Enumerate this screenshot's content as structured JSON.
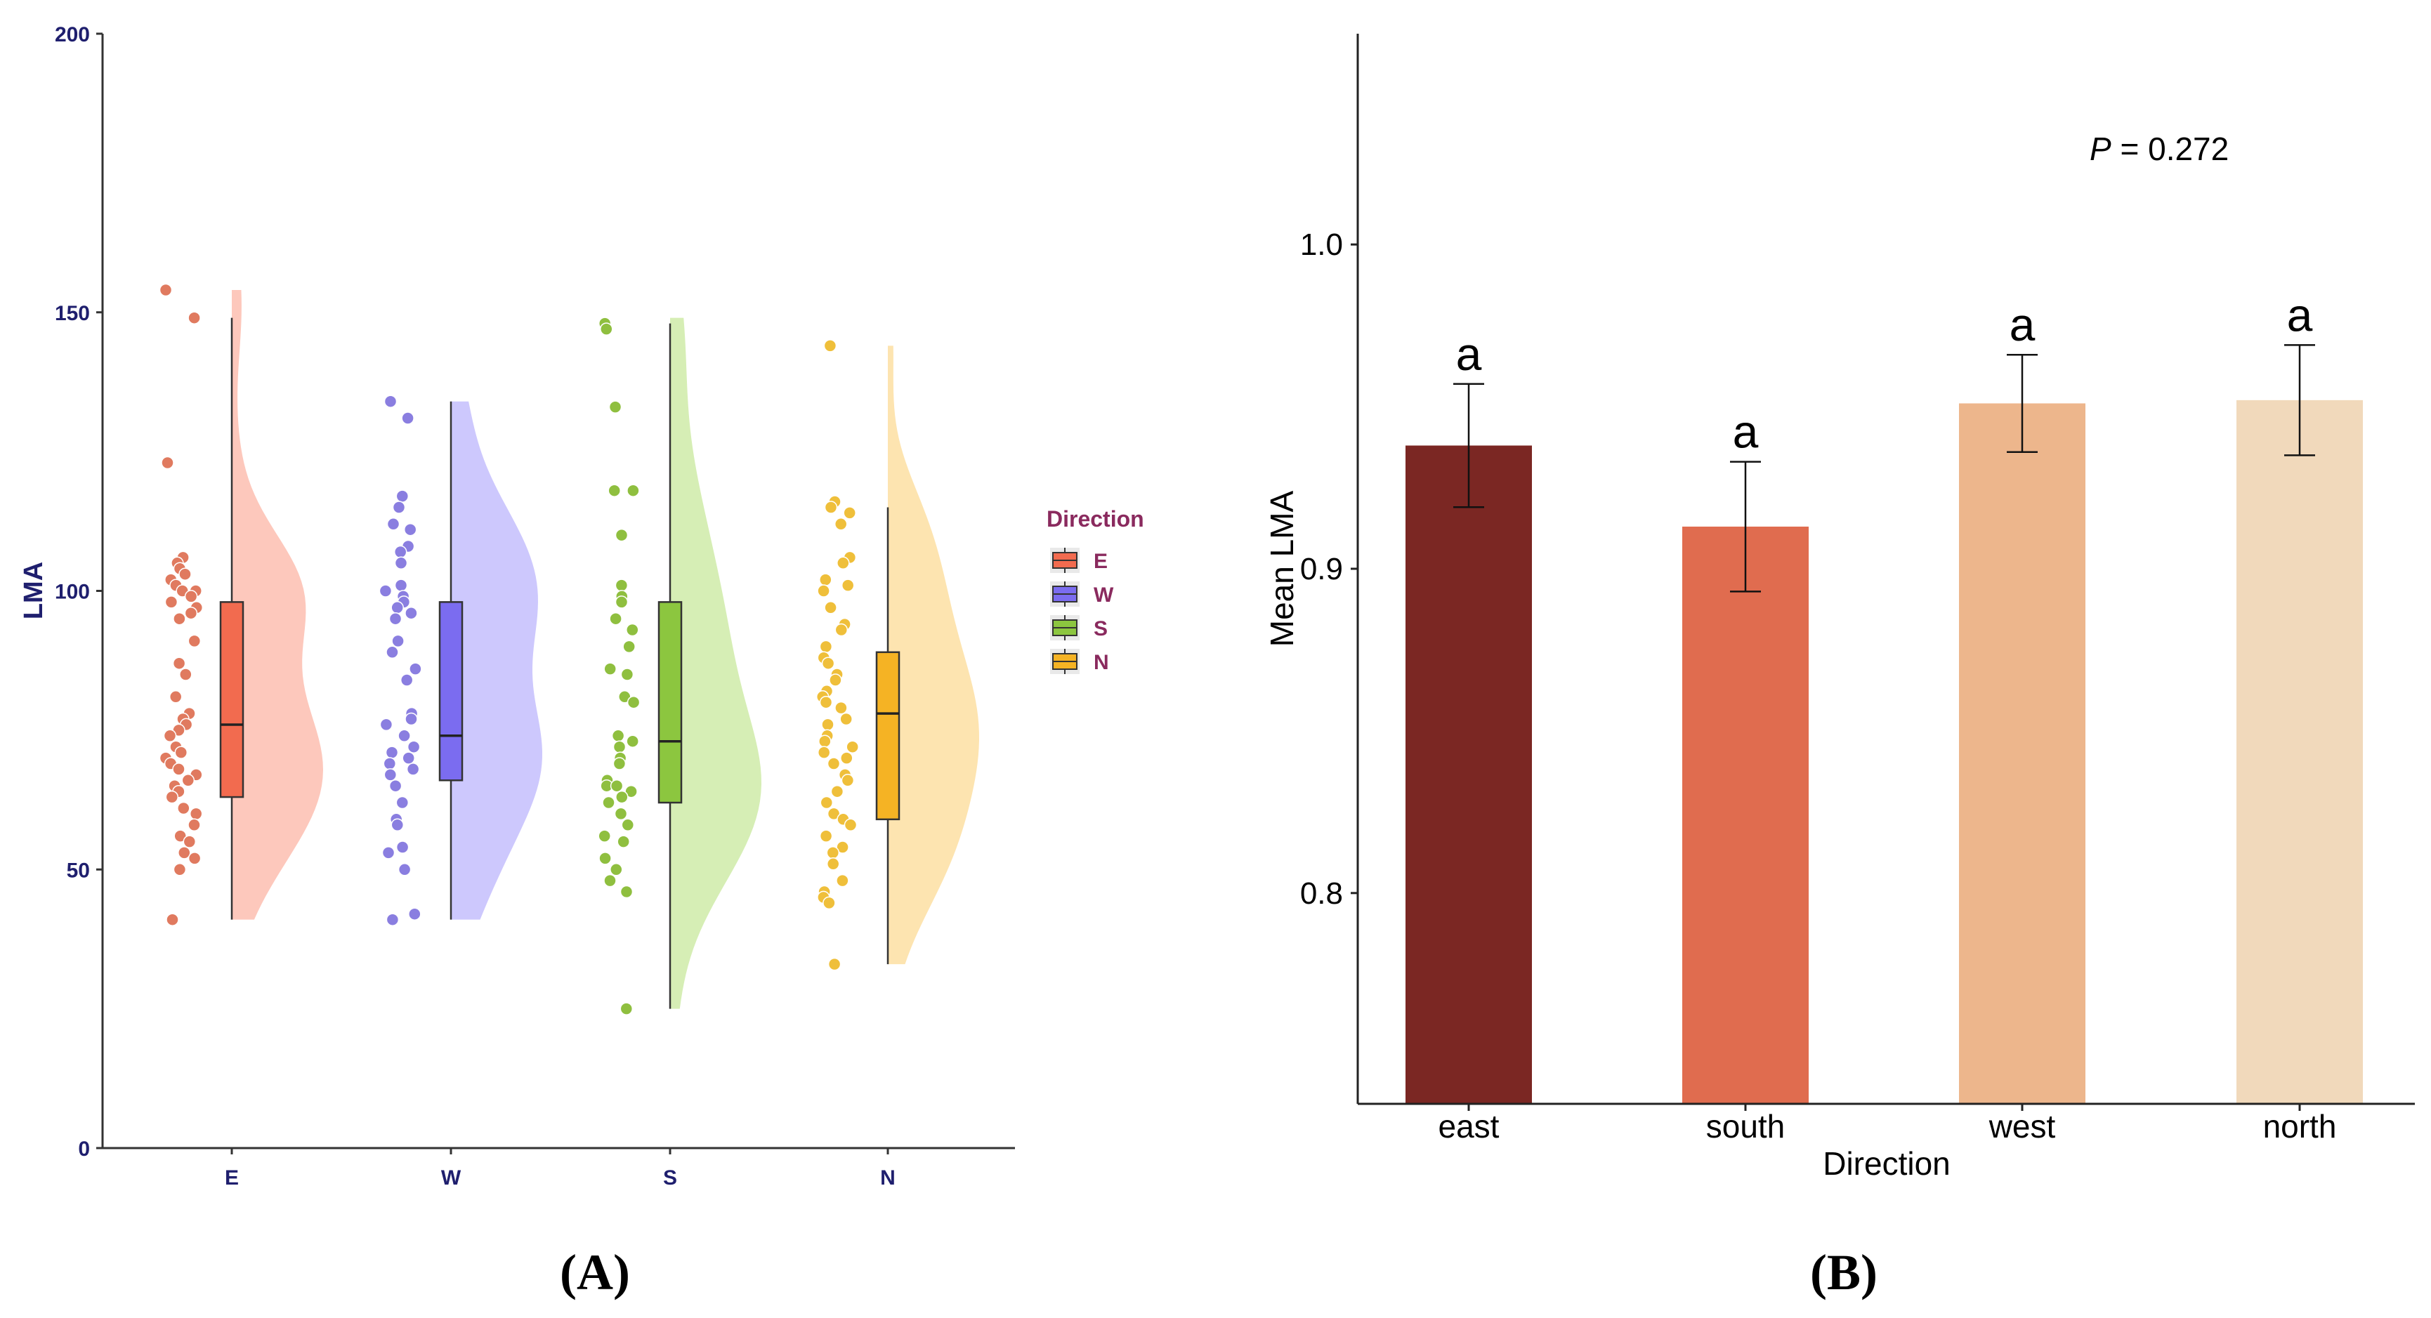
{
  "chart_data": [
    {
      "panel": "(A)",
      "panel_label": "(A)",
      "type": "scatter",
      "subtype": "raincloud (jittered points + boxplot + half-violin density)",
      "ylabel": "LMA",
      "xlabel": "",
      "ylim": [
        0,
        200
      ],
      "yticks": [
        "0",
        "50",
        "100",
        "150",
        "200"
      ],
      "categories": [
        "E",
        "W",
        "S",
        "N"
      ],
      "legend": {
        "title": "Direction",
        "position": "right",
        "entries": [
          {
            "label": "E",
            "color": "#f26b4f"
          },
          {
            "label": "W",
            "color": "#7b6cf0"
          },
          {
            "label": "S",
            "color": "#8cc63f"
          },
          {
            "label": "N",
            "color": "#f5b324"
          }
        ]
      },
      "series": [
        {
          "name": "E",
          "point_color": "#e07a5f",
          "box_color": "#f26b4f",
          "violin_color": "#fdc8bc",
          "box": {
            "min": 41,
            "q1": 63,
            "median": 76,
            "q3": 98,
            "max": 149
          },
          "violin_max": 154,
          "points": [
            154,
            149,
            123,
            106,
            105,
            104,
            103,
            102,
            101,
            100,
            100,
            99,
            98,
            97,
            96,
            95,
            91,
            87,
            85,
            81,
            78,
            77,
            76,
            75,
            74,
            72,
            71,
            70,
            69,
            68,
            67,
            66,
            65,
            64,
            63,
            61,
            60,
            58,
            56,
            55,
            53,
            52,
            50,
            41
          ]
        },
        {
          "name": "W",
          "point_color": "#8a7ee0",
          "box_color": "#7b6cf0",
          "violin_color": "#cdc8fd",
          "box": {
            "min": 41,
            "q1": 66,
            "median": 74,
            "q3": 98,
            "max": 134
          },
          "violin_max": 134,
          "points": [
            134,
            131,
            117,
            115,
            112,
            111,
            108,
            107,
            105,
            101,
            100,
            99,
            98,
            97,
            96,
            95,
            91,
            89,
            86,
            84,
            78,
            77,
            76,
            74,
            72,
            71,
            70,
            69,
            68,
            67,
            65,
            62,
            59,
            58,
            54,
            53,
            50,
            42,
            41
          ]
        },
        {
          "name": "S",
          "point_color": "#8fbf3f",
          "box_color": "#8cc63f",
          "violin_color": "#d6eeb5",
          "box": {
            "min": 25,
            "q1": 62,
            "median": 73,
            "q3": 98,
            "max": 148
          },
          "violin_max": 149,
          "points": [
            148,
            147,
            133,
            118,
            118,
            110,
            110,
            101,
            99,
            98,
            95,
            93,
            90,
            86,
            85,
            81,
            80,
            74,
            73,
            72,
            70,
            69,
            66,
            65,
            65,
            64,
            63,
            62,
            60,
            58,
            56,
            55,
            52,
            50,
            48,
            46,
            25
          ]
        },
        {
          "name": "N",
          "point_color": "#efbf3a",
          "box_color": "#f5b324",
          "violin_color": "#fde4b0",
          "box": {
            "min": 33,
            "q1": 59,
            "median": 78,
            "q3": 89,
            "max": 115
          },
          "violin_max": 144,
          "points": [
            144,
            116,
            115,
            114,
            112,
            106,
            105,
            102,
            101,
            100,
            97,
            94,
            93,
            90,
            88,
            87,
            85,
            84,
            82,
            81,
            80,
            79,
            77,
            76,
            74,
            73,
            72,
            71,
            70,
            69,
            67,
            66,
            64,
            62,
            60,
            59,
            58,
            56,
            54,
            53,
            51,
            48,
            46,
            45,
            44,
            33
          ]
        }
      ]
    },
    {
      "panel": "(B)",
      "panel_label": "(B)",
      "type": "bar",
      "title": "",
      "xlabel": "Direction",
      "ylabel": "Mean LMA",
      "ylim": [
        0.735,
        1.065
      ],
      "yticks": [
        "0.8",
        "0.9",
        "1.0"
      ],
      "categories": [
        "east",
        "south",
        "west",
        "north"
      ],
      "values": [
        0.938,
        0.913,
        0.951,
        0.952
      ],
      "error": [
        0.019,
        0.02,
        0.015,
        0.017
      ],
      "letters": [
        "a",
        "a",
        "a",
        "a"
      ],
      "colors": [
        "#7b2723",
        "#e06c4f",
        "#edb68c",
        "#f1d9bb"
      ],
      "annotation": {
        "italic": "P",
        "text": " = 0.272"
      }
    }
  ]
}
